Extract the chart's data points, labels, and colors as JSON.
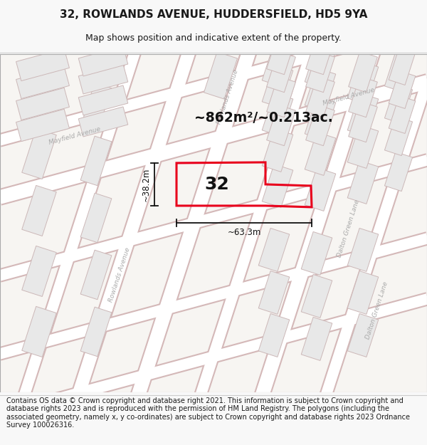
{
  "title": "32, ROWLANDS AVENUE, HUDDERSFIELD, HD5 9YA",
  "subtitle": "Map shows position and indicative extent of the property.",
  "footer": "Contains OS data © Crown copyright and database right 2021. This information is subject to Crown copyright and database rights 2023 and is reproduced with the permission of HM Land Registry. The polygons (including the associated geometry, namely x, y co-ordinates) are subject to Crown copyright and database rights 2023 Ordnance Survey 100026316.",
  "area_label": "~862m²/~0.213ac.",
  "width_label": "~63.3m",
  "height_label": "~38.2m",
  "property_number": "32",
  "bg_color": "#f8f8f8",
  "map_bg": "#f8f8f8",
  "block_fill": "#e8e8e8",
  "block_edge": "#c8b8b8",
  "road_fill": "#ffffff",
  "red_line": "#e8001c",
  "prop_fill": "none",
  "street_label_color": "#aaaaaa",
  "anno_color": "#111111",
  "title_color": "#1a1a1a",
  "title_size": 11,
  "subtitle_size": 9,
  "footer_size": 7
}
